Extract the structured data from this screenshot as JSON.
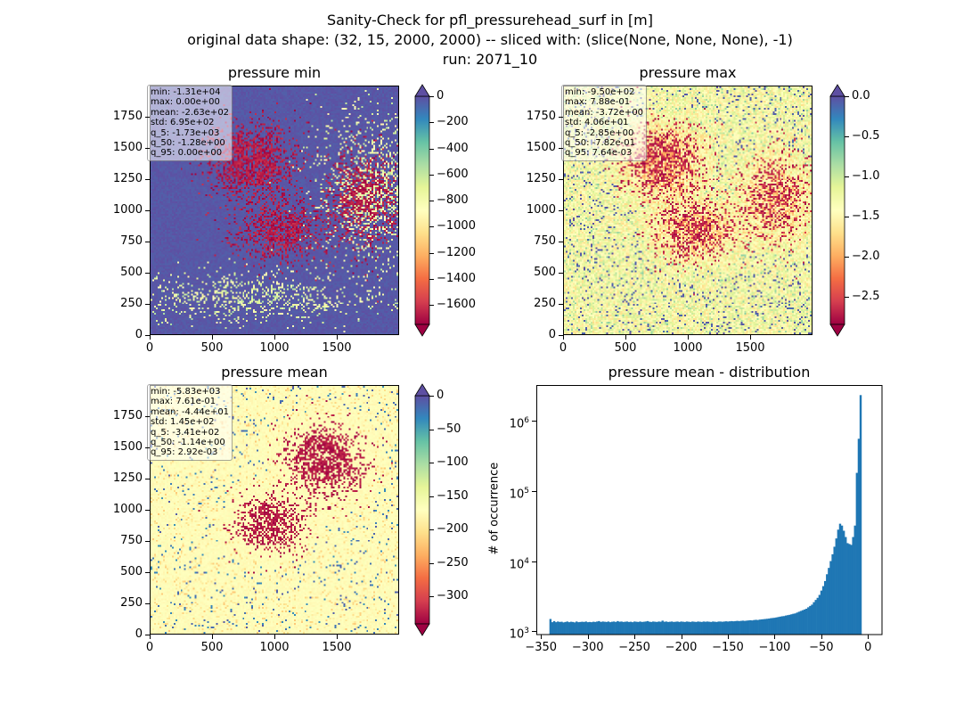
{
  "figure": {
    "title_lines": [
      "Sanity-Check for pfl_pressurehead_surf in [m]",
      "original data shape: (32, 15, 2000, 2000) -- sliced with: (slice(None, None, None), -1)",
      "run: 2071_10"
    ]
  },
  "colors": {
    "colormap": "Spectral",
    "histogram_bar": "#1f77b4"
  },
  "chart_data": [
    {
      "type": "heatmap",
      "title": "pressure min",
      "colormap": "Spectral",
      "xlim": [
        0,
        2000
      ],
      "ylim": [
        0,
        2000
      ],
      "xticks": [
        "0",
        "500",
        "1000",
        "1500"
      ],
      "yticks": [
        "0",
        "250",
        "500",
        "750",
        "1000",
        "1250",
        "1500",
        "1750"
      ],
      "colorbar": {
        "range": [
          -1750,
          0
        ],
        "ticks": [
          "0",
          "−200",
          "−400",
          "−600",
          "−800",
          "−1000",
          "−1200",
          "−1400",
          "−1600"
        ],
        "extend": "both"
      },
      "stats": [
        "min: -1.31e+04",
        "max: 0.00e+00",
        "mean: -2.63e+02",
        "std: 6.95e+02",
        "q_5: -1.73e+03",
        "q_50: -1.28e+00",
        "q_95: 0.00e+00"
      ]
    },
    {
      "type": "heatmap",
      "title": "pressure max",
      "colormap": "Spectral",
      "xlim": [
        0,
        2000
      ],
      "ylim": [
        0,
        2000
      ],
      "xticks": [
        "0",
        "500",
        "1000",
        "1500"
      ],
      "yticks": [
        "0",
        "250",
        "500",
        "750",
        "1000",
        "1250",
        "1500",
        "1750"
      ],
      "colorbar": {
        "range": [
          -2.85,
          0
        ],
        "ticks": [
          "0.0",
          "−0.5",
          "−1.0",
          "−1.5",
          "−2.0",
          "−2.5"
        ],
        "extend": "both"
      },
      "stats": [
        "min: -9.50e+02",
        "max: 7.88e-01",
        "mean: -3.72e+00",
        "std: 4.06e+01",
        "q_5: -2.85e+00",
        "q_50: -7.82e-01",
        "q_95: 7.64e-03"
      ]
    },
    {
      "type": "heatmap",
      "title": "pressure mean",
      "colormap": "Spectral",
      "xlim": [
        0,
        2000
      ],
      "ylim": [
        0,
        2000
      ],
      "xticks": [
        "0",
        "500",
        "1000",
        "1500"
      ],
      "yticks": [
        "0",
        "250",
        "500",
        "750",
        "1000",
        "1250",
        "1500",
        "1750"
      ],
      "colorbar": {
        "range": [
          -341,
          0
        ],
        "ticks": [
          "0",
          "−50",
          "−100",
          "−150",
          "−200",
          "−250",
          "−300"
        ],
        "extend": "both"
      },
      "stats": [
        "min: -5.83e+03",
        "max: 7.61e-01",
        "mean: -4.44e+01",
        "std: 1.45e+02",
        "q_5: -3.41e+02",
        "q_50: -1.14e+00",
        "q_95: 2.92e-03"
      ]
    },
    {
      "type": "bar",
      "title": "pressure mean - distribution",
      "xlabel": "",
      "ylabel": "# of occurrence",
      "yscale": "log",
      "xlim": [
        -355,
        15
      ],
      "ylim": [
        900,
        3200000
      ],
      "xticks": [
        "−350",
        "−300",
        "−250",
        "−200",
        "−150",
        "−100",
        "−50",
        "0"
      ],
      "xtick_values": [
        -350,
        -300,
        -250,
        -200,
        -150,
        -100,
        -50,
        0
      ],
      "yticks": [
        "10",
        "10",
        "10",
        "10"
      ],
      "ytick_exponents": [
        "3",
        "4",
        "5",
        "6"
      ],
      "ytick_values": [
        1000,
        10000,
        100000,
        1000000
      ],
      "bins": {
        "start": -341,
        "width": 2,
        "counts": [
          1500,
          1350,
          1400,
          1350,
          1380,
          1360,
          1370,
          1340,
          1360,
          1380,
          1350,
          1370,
          1360,
          1340,
          1380,
          1350,
          1360,
          1370,
          1360,
          1380,
          1350,
          1360,
          1350,
          1370,
          1360,
          1380,
          1400,
          1360,
          1380,
          1370,
          1360,
          1380,
          1350,
          1370,
          1380,
          1360,
          1400,
          1370,
          1380,
          1360,
          1370,
          1380,
          1360,
          1370,
          1350,
          1380,
          1370,
          1360,
          1380,
          1360,
          1370,
          1380,
          1400,
          1370,
          1360,
          1380,
          1370,
          1360,
          1380,
          1370,
          1420,
          1370,
          1380,
          1360,
          1370,
          1380,
          1360,
          1370,
          1380,
          1360,
          1380,
          1370,
          1360,
          1380,
          1370,
          1360,
          1380,
          1370,
          1360,
          1380,
          1370,
          1360,
          1380,
          1370,
          1380,
          1370,
          1360,
          1380,
          1370,
          1360,
          1380,
          1380,
          1370,
          1380,
          1390,
          1380,
          1390,
          1400,
          1390,
          1400,
          1410,
          1400,
          1410,
          1420,
          1410,
          1420,
          1430,
          1440,
          1430,
          1450,
          1460,
          1450,
          1470,
          1480,
          1490,
          1500,
          1510,
          1520,
          1540,
          1550,
          1560,
          1580,
          1600,
          1620,
          1640,
          1650,
          1680,
          1700,
          1720,
          1750,
          1780,
          1800,
          1850,
          1900,
          1950,
          2000,
          2050,
          2100,
          2200,
          2300,
          2400,
          2600,
          2800,
          3000,
          3300,
          3800,
          4400,
          5200,
          6500,
          8000,
          10000,
          12500,
          16000,
          21000,
          28000,
          34000,
          32000,
          27000,
          22000,
          18000,
          17500,
          17000,
          22000,
          32000,
          180000,
          550000,
          2300000
        ]
      }
    }
  ]
}
